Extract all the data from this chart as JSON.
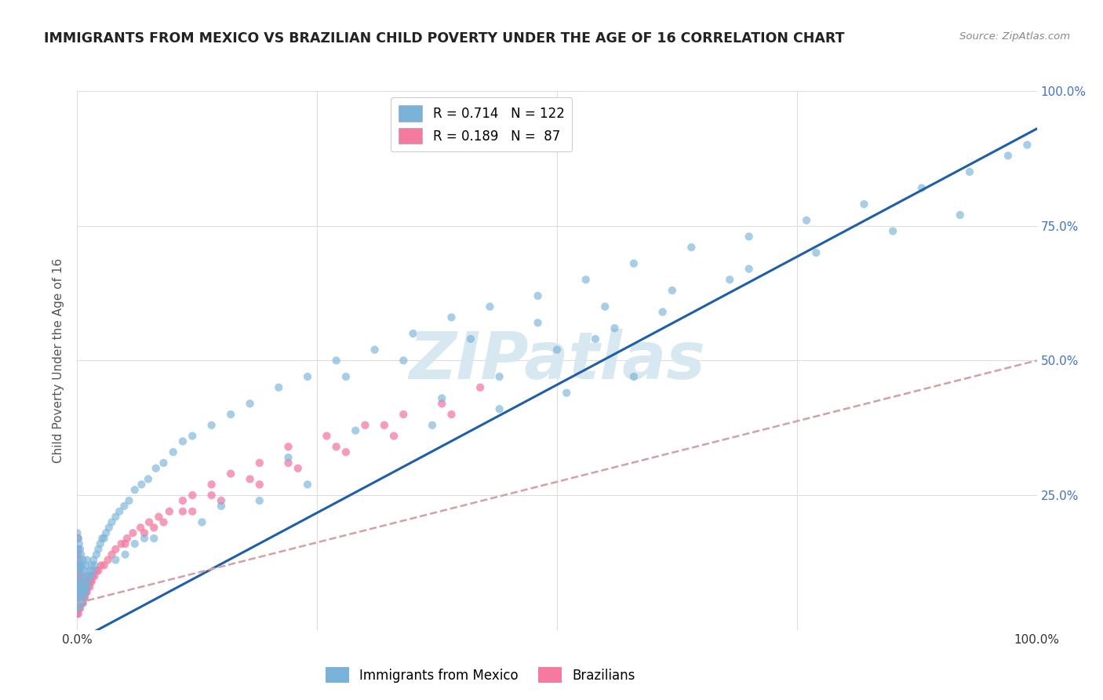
{
  "title": "IMMIGRANTS FROM MEXICO VS BRAZILIAN CHILD POVERTY UNDER THE AGE OF 16 CORRELATION CHART",
  "source": "Source: ZipAtlas.com",
  "ylabel": "Child Poverty Under the Age of 16",
  "xlim": [
    0,
    1
  ],
  "ylim": [
    0,
    1
  ],
  "legend_entries": [
    {
      "label": "R = 0.714   N = 122",
      "color": "#7ab3d9"
    },
    {
      "label": "R = 0.189   N =  87",
      "color": "#f47aa0"
    }
  ],
  "legend_labels": [
    "Immigrants from Mexico",
    "Brazilians"
  ],
  "watermark": "ZIPatlas",
  "background_color": "#ffffff",
  "grid_color": "#dddddd",
  "mexico_color": "#7ab3d9",
  "brazil_color": "#f47aa0",
  "mexico_line_color": "#1f5fa6",
  "brazil_line_color": "#d4a0a8",
  "mexico_scatter_x": [
    0.0,
    0.0,
    0.0,
    0.0,
    0.0,
    0.001,
    0.001,
    0.001,
    0.001,
    0.001,
    0.001,
    0.001,
    0.002,
    0.002,
    0.002,
    0.002,
    0.002,
    0.002,
    0.003,
    0.003,
    0.003,
    0.003,
    0.003,
    0.004,
    0.004,
    0.004,
    0.004,
    0.005,
    0.005,
    0.005,
    0.006,
    0.006,
    0.006,
    0.007,
    0.007,
    0.008,
    0.008,
    0.009,
    0.009,
    0.01,
    0.01,
    0.011,
    0.012,
    0.013,
    0.014,
    0.015,
    0.016,
    0.017,
    0.018,
    0.02,
    0.022,
    0.024,
    0.026,
    0.028,
    0.03,
    0.033,
    0.036,
    0.04,
    0.044,
    0.049,
    0.054,
    0.06,
    0.067,
    0.074,
    0.082,
    0.09,
    0.1,
    0.11,
    0.12,
    0.14,
    0.16,
    0.18,
    0.21,
    0.24,
    0.27,
    0.31,
    0.35,
    0.39,
    0.43,
    0.48,
    0.53,
    0.58,
    0.64,
    0.7,
    0.76,
    0.82,
    0.88,
    0.93,
    0.97,
    0.99,
    0.28,
    0.34,
    0.41,
    0.48,
    0.55,
    0.62,
    0.7,
    0.77,
    0.85,
    0.92,
    0.37,
    0.44,
    0.51,
    0.58,
    0.19,
    0.24,
    0.08,
    0.13,
    0.04,
    0.05,
    0.06,
    0.07,
    0.15,
    0.29,
    0.5,
    0.56,
    0.22,
    0.38,
    0.44,
    0.54,
    0.61,
    0.68
  ],
  "mexico_scatter_y": [
    0.05,
    0.08,
    0.12,
    0.15,
    0.18,
    0.04,
    0.06,
    0.08,
    0.1,
    0.12,
    0.14,
    0.17,
    0.05,
    0.07,
    0.09,
    0.11,
    0.13,
    0.16,
    0.05,
    0.07,
    0.09,
    0.12,
    0.15,
    0.06,
    0.08,
    0.11,
    0.14,
    0.05,
    0.08,
    0.12,
    0.06,
    0.09,
    0.13,
    0.07,
    0.1,
    0.07,
    0.11,
    0.08,
    0.12,
    0.08,
    0.13,
    0.09,
    0.1,
    0.11,
    0.1,
    0.12,
    0.11,
    0.13,
    0.12,
    0.14,
    0.15,
    0.16,
    0.17,
    0.17,
    0.18,
    0.19,
    0.2,
    0.21,
    0.22,
    0.23,
    0.24,
    0.26,
    0.27,
    0.28,
    0.3,
    0.31,
    0.33,
    0.35,
    0.36,
    0.38,
    0.4,
    0.42,
    0.45,
    0.47,
    0.5,
    0.52,
    0.55,
    0.58,
    0.6,
    0.62,
    0.65,
    0.68,
    0.71,
    0.73,
    0.76,
    0.79,
    0.82,
    0.85,
    0.88,
    0.9,
    0.47,
    0.5,
    0.54,
    0.57,
    0.6,
    0.63,
    0.67,
    0.7,
    0.74,
    0.77,
    0.38,
    0.41,
    0.44,
    0.47,
    0.24,
    0.27,
    0.17,
    0.2,
    0.13,
    0.14,
    0.16,
    0.17,
    0.23,
    0.37,
    0.52,
    0.56,
    0.32,
    0.43,
    0.47,
    0.54,
    0.59,
    0.65
  ],
  "brazil_scatter_x": [
    0.0,
    0.0,
    0.0,
    0.0,
    0.0,
    0.0,
    0.001,
    0.001,
    0.001,
    0.001,
    0.001,
    0.001,
    0.001,
    0.001,
    0.002,
    0.002,
    0.002,
    0.002,
    0.002,
    0.003,
    0.003,
    0.003,
    0.003,
    0.004,
    0.004,
    0.004,
    0.005,
    0.005,
    0.005,
    0.006,
    0.006,
    0.007,
    0.007,
    0.008,
    0.008,
    0.009,
    0.01,
    0.01,
    0.011,
    0.012,
    0.013,
    0.014,
    0.015,
    0.016,
    0.018,
    0.02,
    0.022,
    0.025,
    0.028,
    0.032,
    0.036,
    0.04,
    0.046,
    0.052,
    0.058,
    0.066,
    0.075,
    0.085,
    0.096,
    0.11,
    0.12,
    0.14,
    0.16,
    0.19,
    0.22,
    0.26,
    0.3,
    0.34,
    0.38,
    0.42,
    0.05,
    0.07,
    0.09,
    0.12,
    0.15,
    0.19,
    0.23,
    0.28,
    0.33,
    0.39,
    0.08,
    0.11,
    0.14,
    0.18,
    0.22,
    0.27,
    0.32
  ],
  "brazil_scatter_y": [
    0.03,
    0.05,
    0.07,
    0.09,
    0.11,
    0.14,
    0.03,
    0.05,
    0.07,
    0.09,
    0.11,
    0.13,
    0.15,
    0.17,
    0.04,
    0.06,
    0.08,
    0.1,
    0.12,
    0.04,
    0.06,
    0.08,
    0.1,
    0.05,
    0.07,
    0.09,
    0.05,
    0.07,
    0.09,
    0.05,
    0.08,
    0.06,
    0.08,
    0.06,
    0.09,
    0.07,
    0.07,
    0.1,
    0.08,
    0.09,
    0.08,
    0.09,
    0.09,
    0.1,
    0.1,
    0.11,
    0.11,
    0.12,
    0.12,
    0.13,
    0.14,
    0.15,
    0.16,
    0.17,
    0.18,
    0.19,
    0.2,
    0.21,
    0.22,
    0.24,
    0.25,
    0.27,
    0.29,
    0.31,
    0.34,
    0.36,
    0.38,
    0.4,
    0.42,
    0.45,
    0.16,
    0.18,
    0.2,
    0.22,
    0.24,
    0.27,
    0.3,
    0.33,
    0.36,
    0.4,
    0.19,
    0.22,
    0.25,
    0.28,
    0.31,
    0.34,
    0.38
  ],
  "mexico_trend_x": [
    0.0,
    1.0
  ],
  "mexico_trend_y": [
    -0.02,
    0.93
  ],
  "brazil_trend_x": [
    0.0,
    1.0
  ],
  "brazil_trend_y": [
    0.05,
    0.5
  ]
}
